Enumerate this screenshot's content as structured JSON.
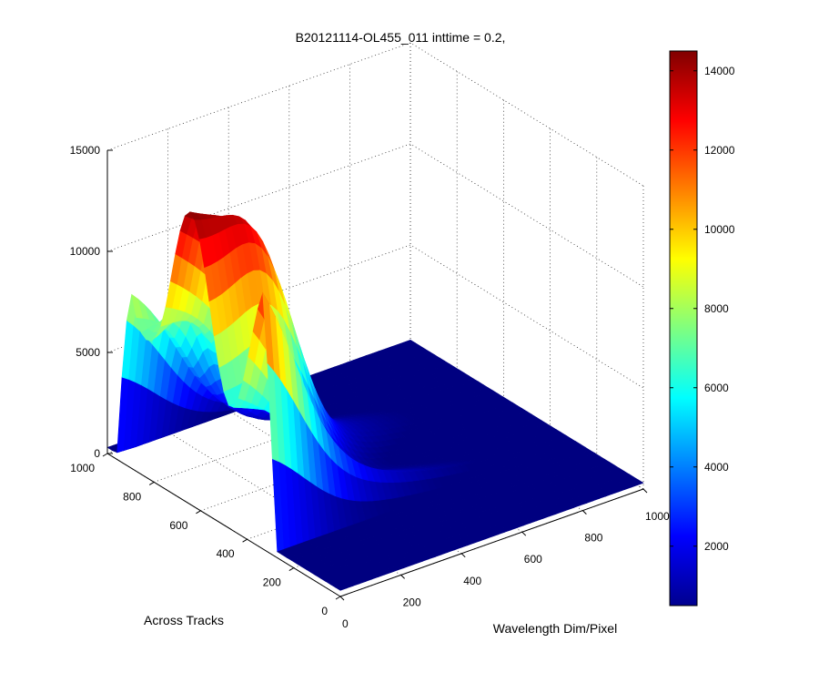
{
  "chart_data": {
    "type": "surface",
    "title": "B20121114-OL455_011 inttime = 0.2,",
    "xlabel": "Wavelength Dim/Pixel",
    "ylabel": "Across Tracks",
    "zlabel": "",
    "xlim": [
      0,
      1000
    ],
    "ylim": [
      0,
      1000
    ],
    "zlim": [
      0,
      15000
    ],
    "x_ticks": [
      "0",
      "200",
      "400",
      "600",
      "800",
      "1000"
    ],
    "y_ticks": [
      "0",
      "200",
      "400",
      "600",
      "800",
      "1000"
    ],
    "z_ticks": [
      "0",
      "5000",
      "10000",
      "15000"
    ],
    "grid": true,
    "colormap": "jet",
    "colorbar": {
      "position": "right",
      "range": [
        500,
        14500
      ],
      "ticks": [
        "2000",
        "4000",
        "6000",
        "8000",
        "10000",
        "12000",
        "14000"
      ]
    },
    "peak_value": 14500,
    "peak_location": {
      "wavelength_pixel": 0,
      "across_track": 650
    },
    "secondary_peak_value": 8000,
    "secondary_peak_location": {
      "wavelength_pixel": 200,
      "across_track": 600
    }
  }
}
